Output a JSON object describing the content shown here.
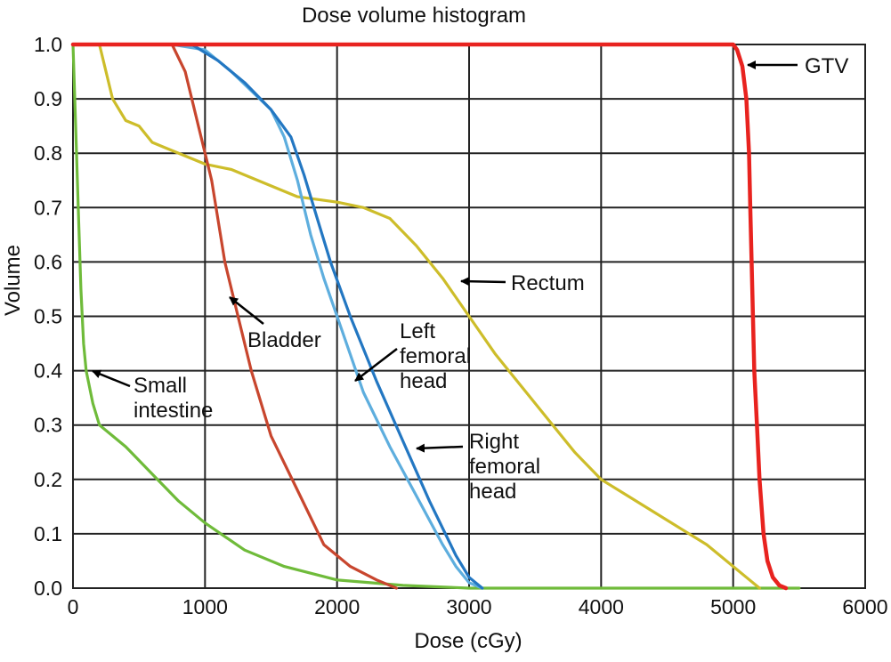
{
  "chart_data": {
    "type": "line",
    "title": "Dose volume histogram",
    "xlabel": "Dose (cGy)",
    "ylabel": "Volume",
    "xlim": [
      0,
      6000
    ],
    "ylim": [
      0,
      1.0
    ],
    "grid": true,
    "x_ticks": [
      "0",
      "1000",
      "2000",
      "3000",
      "4000",
      "5000",
      "6000"
    ],
    "y_ticks": [
      "0.0",
      "0.1",
      "0.2",
      "0.3",
      "0.4",
      "0.5",
      "0.6",
      "0.7",
      "0.8",
      "0.9",
      "1.0"
    ],
    "series": [
      {
        "name": "GTV",
        "color": "#e8231f",
        "x": [
          0,
          5000,
          5030,
          5070,
          5100,
          5120,
          5130,
          5140,
          5150,
          5160,
          5180,
          5200,
          5230,
          5260,
          5300,
          5350,
          5400
        ],
        "y": [
          1.0,
          1.0,
          0.99,
          0.96,
          0.9,
          0.8,
          0.7,
          0.6,
          0.5,
          0.4,
          0.3,
          0.2,
          0.1,
          0.05,
          0.02,
          0.005,
          0.0
        ]
      },
      {
        "name": "Rectum",
        "color": "#cdbd2a",
        "x": [
          0,
          200,
          300,
          400,
          500,
          600,
          700,
          1000,
          1200,
          1500,
          1700,
          2000,
          2200,
          2400,
          2600,
          2800,
          3000,
          3200,
          3400,
          3600,
          3800,
          4000,
          4200,
          4400,
          4600,
          4800,
          5000,
          5100,
          5200
        ],
        "y": [
          1.0,
          1.0,
          0.9,
          0.86,
          0.85,
          0.82,
          0.81,
          0.78,
          0.77,
          0.74,
          0.72,
          0.71,
          0.7,
          0.68,
          0.63,
          0.57,
          0.5,
          0.43,
          0.37,
          0.31,
          0.25,
          0.2,
          0.17,
          0.14,
          0.11,
          0.08,
          0.04,
          0.02,
          0.0
        ]
      },
      {
        "name": "Bladder",
        "color": "#c8462e",
        "x": [
          0,
          750,
          850,
          950,
          1050,
          1150,
          1250,
          1350,
          1500,
          1700,
          1900,
          2100,
          2300,
          2450
        ],
        "y": [
          1.0,
          1.0,
          0.95,
          0.85,
          0.75,
          0.6,
          0.5,
          0.4,
          0.28,
          0.18,
          0.08,
          0.04,
          0.015,
          0.0
        ]
      },
      {
        "name": "Left femoral head",
        "color": "#5eaede",
        "x": [
          0,
          750,
          1000,
          1200,
          1500,
          1600,
          1700,
          1800,
          1900,
          2000,
          2200,
          2400,
          2600,
          2800,
          2900,
          3000,
          3100
        ],
        "y": [
          1.0,
          1.0,
          0.99,
          0.95,
          0.88,
          0.83,
          0.75,
          0.65,
          0.57,
          0.5,
          0.36,
          0.26,
          0.17,
          0.08,
          0.04,
          0.01,
          0.0
        ]
      },
      {
        "name": "Right femoral head",
        "color": "#2377c2",
        "x": [
          0,
          900,
          1100,
          1300,
          1500,
          1650,
          1750,
          1850,
          1950,
          2100,
          2300,
          2500,
          2700,
          2900,
          3000,
          3100
        ],
        "y": [
          1.0,
          1.0,
          0.97,
          0.93,
          0.88,
          0.83,
          0.76,
          0.68,
          0.6,
          0.5,
          0.38,
          0.27,
          0.16,
          0.06,
          0.02,
          0.0
        ]
      },
      {
        "name": "Small intestine",
        "color": "#6fbb3a",
        "x": [
          0,
          20,
          40,
          60,
          80,
          100,
          150,
          200,
          300,
          400,
          600,
          800,
          1000,
          1300,
          1600,
          2000,
          2500,
          3000,
          4000,
          5500
        ],
        "y": [
          1.0,
          0.85,
          0.7,
          0.55,
          0.45,
          0.4,
          0.34,
          0.3,
          0.28,
          0.26,
          0.21,
          0.16,
          0.12,
          0.07,
          0.04,
          0.015,
          0.005,
          0.0,
          0.0,
          0.0
        ]
      }
    ],
    "annotations": [
      {
        "lines": [
          "GTV"
        ],
        "color_series": "GTV"
      },
      {
        "lines": [
          "Rectum"
        ],
        "color_series": "Rectum"
      },
      {
        "lines": [
          "Bladder"
        ],
        "color_series": "Bladder"
      },
      {
        "lines": [
          "Left",
          "femoral",
          "head"
        ],
        "color_series": "Left femoral head"
      },
      {
        "lines": [
          "Right",
          "femoral",
          "head"
        ],
        "color_series": "Right femoral head"
      },
      {
        "lines": [
          "Small",
          "intestine"
        ],
        "color_series": "Small intestine"
      }
    ]
  }
}
